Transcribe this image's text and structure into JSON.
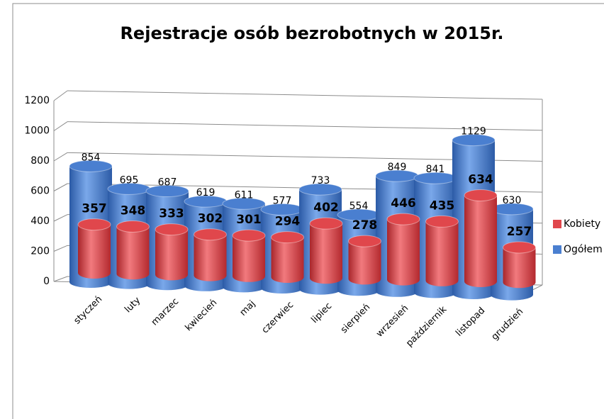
{
  "chart_data": {
    "type": "bar3d",
    "title": "Rejestracje osób bezrobotnych w 2015r.",
    "categories": [
      "styczeń",
      "luty",
      "marzec",
      "kwiecień",
      "maj",
      "czerwiec",
      "lipiec",
      "sierpień",
      "wrzesień",
      "październik",
      "listopad",
      "grudzień"
    ],
    "series": [
      {
        "name": "Kobiety",
        "color": "#e0474c",
        "values": [
          357,
          348,
          333,
          302,
          301,
          294,
          402,
          278,
          446,
          435,
          634,
          257
        ]
      },
      {
        "name": "Ogółem",
        "color": "#4a7fd0",
        "values": [
          854,
          695,
          687,
          619,
          611,
          577,
          733,
          554,
          849,
          841,
          1129,
          630
        ]
      }
    ],
    "ylim": [
      0,
      1200
    ],
    "yticks": [
      0,
      200,
      400,
      600,
      800,
      1000,
      1200
    ],
    "grid": true,
    "legend": "right"
  }
}
